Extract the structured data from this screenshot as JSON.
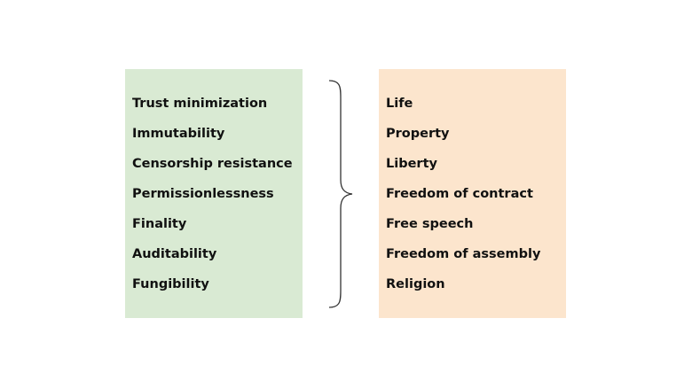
{
  "left_box": {
    "color": "#d9ead3",
    "items": [
      "Trust minimization",
      "Immutability",
      "Censorship resistance",
      "Permissionlessness",
      "Finality",
      "Auditability",
      "Fungibility"
    ]
  },
  "right_box": {
    "color": "#fce5cd",
    "items": [
      "Life",
      "Property",
      "Liberty",
      "Freedom of contract",
      "Free speech",
      "Freedom of assembly",
      "Religion"
    ]
  },
  "connector": {
    "icon": "right-curly-brace",
    "color": "#333333"
  }
}
